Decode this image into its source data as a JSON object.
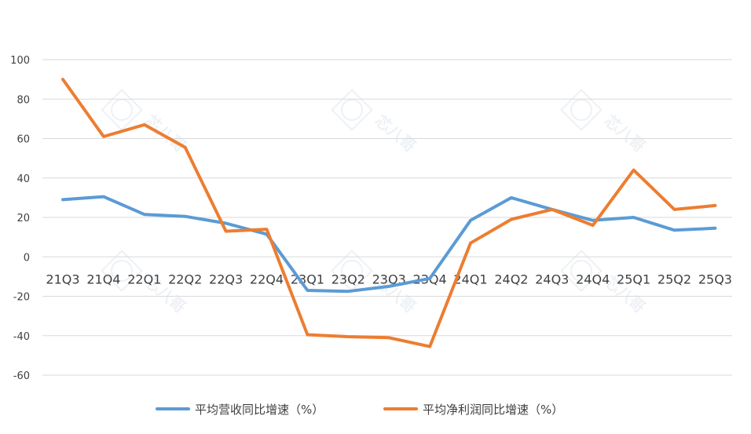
{
  "chart_data": {
    "type": "line",
    "title": "",
    "xlabel": "",
    "ylabel": "",
    "categories": [
      "21Q3",
      "21Q4",
      "22Q1",
      "22Q2",
      "22Q3",
      "22Q4",
      "23Q1",
      "23Q2",
      "23Q3",
      "23Q4",
      "24Q1",
      "24Q2",
      "24Q3",
      "24Q4",
      "25Q1",
      "25Q2",
      "25Q3"
    ],
    "ylim": [
      -60,
      100
    ],
    "yticks": [
      100,
      80,
      60,
      40,
      20,
      0,
      -20,
      -40,
      -60
    ],
    "grid": true,
    "legend_position": "bottom",
    "series": [
      {
        "name": "平均营收同比增速（%）",
        "color": "#5B9BD5",
        "values": [
          29,
          30.5,
          21.5,
          20.5,
          17,
          11.5,
          -17,
          -17.5,
          -15,
          -11,
          18.5,
          30,
          24,
          18.5,
          20,
          13.5,
          14.5
        ]
      },
      {
        "name": "平均净利润同比增速（%）",
        "color": "#ED7D31",
        "values": [
          90,
          61,
          67,
          55.5,
          13,
          14,
          -39.5,
          -40.5,
          -41,
          -45.5,
          7,
          19,
          24,
          16,
          44,
          24,
          26
        ]
      }
    ]
  },
  "watermark": {
    "text": "芯八哥"
  }
}
